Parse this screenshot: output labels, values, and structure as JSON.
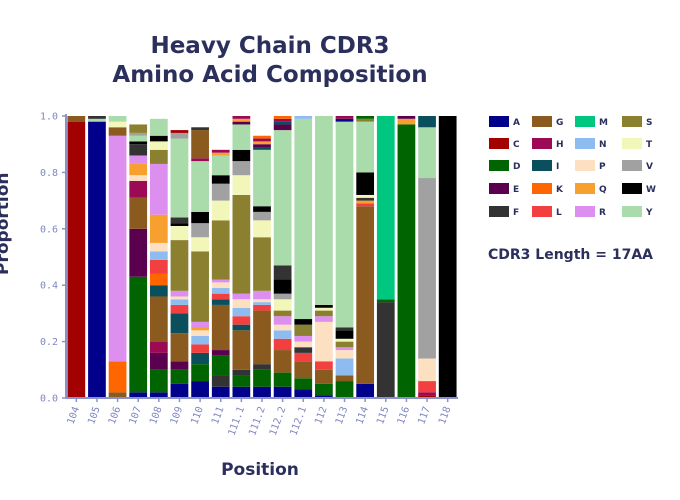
{
  "chart_data": {
    "type": "bar",
    "stacked": true,
    "title_line1": "Heavy Chain CDR3",
    "title_line2": "Amino Acid Composition",
    "xlabel": "Position",
    "ylabel": "Proportion",
    "annotation": "CDR3 Length = 17AA",
    "ylim": [
      0,
      1.0
    ],
    "yticks": [
      "0.0",
      "0.2",
      "0.4",
      "0.6",
      "0.8",
      "1.0"
    ],
    "categories": [
      "104",
      "105",
      "106",
      "107",
      "108",
      "109",
      "110",
      "111",
      "111.1",
      "111.2",
      "112.2",
      "112.1",
      "112",
      "113",
      "114",
      "115",
      "116",
      "117",
      "118"
    ],
    "legend": [
      {
        "aa": "A",
        "color": "#00008b"
      },
      {
        "aa": "C",
        "color": "#a30000"
      },
      {
        "aa": "D",
        "color": "#006400"
      },
      {
        "aa": "E",
        "color": "#5b004f"
      },
      {
        "aa": "F",
        "color": "#333333"
      },
      {
        "aa": "G",
        "color": "#8b5a1e"
      },
      {
        "aa": "H",
        "color": "#9c0a55"
      },
      {
        "aa": "I",
        "color": "#0a4f5b"
      },
      {
        "aa": "K",
        "color": "#ff6600"
      },
      {
        "aa": "L",
        "color": "#f23f3f"
      },
      {
        "aa": "M",
        "color": "#00c77f"
      },
      {
        "aa": "N",
        "color": "#8fbcf0"
      },
      {
        "aa": "P",
        "color": "#fde0c1"
      },
      {
        "aa": "Q",
        "color": "#f7a030"
      },
      {
        "aa": "R",
        "color": "#dd8ff0"
      },
      {
        "aa": "S",
        "color": "#8b8030"
      },
      {
        "aa": "T",
        "color": "#f2f6b8"
      },
      {
        "aa": "V",
        "color": "#a1a1a1"
      },
      {
        "aa": "W",
        "color": "#000000"
      },
      {
        "aa": "Y",
        "color": "#a9dcaa"
      }
    ],
    "stacks": [
      [
        [
          "C",
          0.98
        ],
        [
          "G",
          0.02
        ]
      ],
      [
        [
          "A",
          0.98
        ],
        [
          "Y",
          0.01
        ],
        [
          "F",
          0.01
        ]
      ],
      [
        [
          "G",
          0.02
        ],
        [
          "K",
          0.11
        ],
        [
          "R",
          0.8
        ],
        [
          "G",
          0.03
        ],
        [
          "T",
          0.02
        ],
        [
          "Y",
          0.02
        ]
      ],
      [
        [
          "A",
          0.02
        ],
        [
          "D",
          0.41
        ],
        [
          "E",
          0.17
        ],
        [
          "G",
          0.11
        ],
        [
          "H",
          0.06
        ],
        [
          "P",
          0.02
        ],
        [
          "Q",
          0.04
        ],
        [
          "R",
          0.03
        ],
        [
          "F",
          0.04
        ],
        [
          "W",
          0.01
        ],
        [
          "Y",
          0.02
        ],
        [
          "V",
          0.01
        ],
        [
          "S",
          0.03
        ]
      ],
      [
        [
          "A",
          0.02
        ],
        [
          "D",
          0.08
        ],
        [
          "E",
          0.06
        ],
        [
          "H",
          0.04
        ],
        [
          "G",
          0.16
        ],
        [
          "I",
          0.04
        ],
        [
          "K",
          0.04
        ],
        [
          "L",
          0.05
        ],
        [
          "N",
          0.03
        ],
        [
          "P",
          0.03
        ],
        [
          "Q",
          0.1
        ],
        [
          "R",
          0.18
        ],
        [
          "S",
          0.05
        ],
        [
          "T",
          0.03
        ],
        [
          "W",
          0.02
        ],
        [
          "Y",
          0.06
        ]
      ],
      [
        [
          "A",
          0.05
        ],
        [
          "D",
          0.05
        ],
        [
          "E",
          0.03
        ],
        [
          "G",
          0.1
        ],
        [
          "I",
          0.07
        ],
        [
          "L",
          0.03
        ],
        [
          "N",
          0.02
        ],
        [
          "P",
          0.01
        ],
        [
          "R",
          0.02
        ],
        [
          "S",
          0.18
        ],
        [
          "T",
          0.05
        ],
        [
          "W",
          0.01
        ],
        [
          "F",
          0.02
        ],
        [
          "Y",
          0.28
        ],
        [
          "V",
          0.02
        ],
        [
          "C",
          0.01
        ]
      ],
      [
        [
          "A",
          0.06
        ],
        [
          "D",
          0.06
        ],
        [
          "I",
          0.04
        ],
        [
          "L",
          0.03
        ],
        [
          "N",
          0.03
        ],
        [
          "P",
          0.02
        ],
        [
          "Q",
          0.01
        ],
        [
          "R",
          0.02
        ],
        [
          "S",
          0.25
        ],
        [
          "T",
          0.05
        ],
        [
          "V",
          0.05
        ],
        [
          "W",
          0.04
        ],
        [
          "Y",
          0.18
        ],
        [
          "H",
          0.01
        ],
        [
          "G",
          0.1
        ],
        [
          "F",
          0.01
        ]
      ],
      [
        [
          "A",
          0.04
        ],
        [
          "F",
          0.04
        ],
        [
          "D",
          0.07
        ],
        [
          "E",
          0.02
        ],
        [
          "G",
          0.16
        ],
        [
          "I",
          0.02
        ],
        [
          "L",
          0.02
        ],
        [
          "N",
          0.02
        ],
        [
          "P",
          0.02
        ],
        [
          "R",
          0.01
        ],
        [
          "S",
          0.21
        ],
        [
          "T",
          0.07
        ],
        [
          "V",
          0.06
        ],
        [
          "W",
          0.03
        ],
        [
          "Y",
          0.07
        ],
        [
          "Q",
          0.01
        ],
        [
          "H",
          0.01
        ]
      ],
      [
        [
          "A",
          0.04
        ],
        [
          "D",
          0.04
        ],
        [
          "F",
          0.02
        ],
        [
          "G",
          0.14
        ],
        [
          "I",
          0.02
        ],
        [
          "L",
          0.03
        ],
        [
          "N",
          0.03
        ],
        [
          "P",
          0.03
        ],
        [
          "R",
          0.02
        ],
        [
          "S",
          0.35
        ],
        [
          "T",
          0.07
        ],
        [
          "V",
          0.05
        ],
        [
          "W",
          0.04
        ],
        [
          "Y",
          0.09
        ],
        [
          "E",
          0.01
        ],
        [
          "Q",
          0.01
        ],
        [
          "H",
          0.01
        ]
      ],
      [
        [
          "A",
          0.04
        ],
        [
          "D",
          0.06
        ],
        [
          "F",
          0.02
        ],
        [
          "G",
          0.19
        ],
        [
          "L",
          0.02
        ],
        [
          "N",
          0.01
        ],
        [
          "P",
          0.01
        ],
        [
          "R",
          0.03
        ],
        [
          "S",
          0.19
        ],
        [
          "T",
          0.06
        ],
        [
          "V",
          0.03
        ],
        [
          "W",
          0.02
        ],
        [
          "Y",
          0.2
        ],
        [
          "I",
          0.01
        ],
        [
          "E",
          0.01
        ],
        [
          "Q",
          0.01
        ],
        [
          "H",
          0.01
        ],
        [
          "K",
          0.01
        ]
      ],
      [
        [
          "A",
          0.04
        ],
        [
          "D",
          0.05
        ],
        [
          "G",
          0.08
        ],
        [
          "L",
          0.04
        ],
        [
          "N",
          0.03
        ],
        [
          "P",
          0.02
        ],
        [
          "R",
          0.03
        ],
        [
          "S",
          0.02
        ],
        [
          "T",
          0.04
        ],
        [
          "V",
          0.02
        ],
        [
          "W",
          0.05
        ],
        [
          "F",
          0.05
        ],
        [
          "Y",
          0.48
        ],
        [
          "E",
          0.02
        ],
        [
          "I",
          0.01
        ],
        [
          "H",
          0.01
        ],
        [
          "K",
          0.01
        ]
      ],
      [
        [
          "A",
          0.03
        ],
        [
          "D",
          0.04
        ],
        [
          "G",
          0.06
        ],
        [
          "L",
          0.03
        ],
        [
          "F",
          0.02
        ],
        [
          "P",
          0.02
        ],
        [
          "R",
          0.02
        ],
        [
          "S",
          0.04
        ],
        [
          "W",
          0.02
        ],
        [
          "Y",
          0.71
        ],
        [
          "N",
          0.01
        ]
      ],
      [
        [
          "A",
          0.01
        ],
        [
          "D",
          0.04
        ],
        [
          "G",
          0.05
        ],
        [
          "L",
          0.03
        ],
        [
          "P",
          0.14
        ],
        [
          "R",
          0.02
        ],
        [
          "S",
          0.02
        ],
        [
          "T",
          0.01
        ],
        [
          "W",
          0.01
        ],
        [
          "Y",
          0.69
        ],
        [
          "V",
          0.01
        ]
      ],
      [
        [
          "D",
          0.06
        ],
        [
          "G",
          0.02
        ],
        [
          "N",
          0.06
        ],
        [
          "P",
          0.03
        ],
        [
          "R",
          0.01
        ],
        [
          "S",
          0.02
        ],
        [
          "T",
          0.01
        ],
        [
          "W",
          0.03
        ],
        [
          "F",
          0.01
        ],
        [
          "Y",
          0.73
        ],
        [
          "A",
          0.01
        ],
        [
          "H",
          0.01
        ]
      ],
      [
        [
          "A",
          0.05
        ],
        [
          "G",
          0.63
        ],
        [
          "L",
          0.01
        ],
        [
          "Q",
          0.01
        ],
        [
          "F",
          0.01
        ],
        [
          "T",
          0.01
        ],
        [
          "W",
          0.08
        ],
        [
          "Y",
          0.18
        ],
        [
          "S",
          0.01
        ],
        [
          "D",
          0.01
        ]
      ],
      [
        [
          "F",
          0.34
        ],
        [
          "D",
          0.01
        ],
        [
          "M",
          0.65
        ]
      ],
      [
        [
          "D",
          0.97
        ],
        [
          "Q",
          0.02
        ],
        [
          "E",
          0.01
        ]
      ],
      [
        [
          "C",
          0.01
        ],
        [
          "H",
          0.01
        ],
        [
          "L",
          0.04
        ],
        [
          "P",
          0.08
        ],
        [
          "V",
          0.64
        ],
        [
          "Y",
          0.18
        ],
        [
          "I",
          0.04
        ]
      ],
      [
        [
          "W",
          1.0
        ]
      ]
    ]
  }
}
